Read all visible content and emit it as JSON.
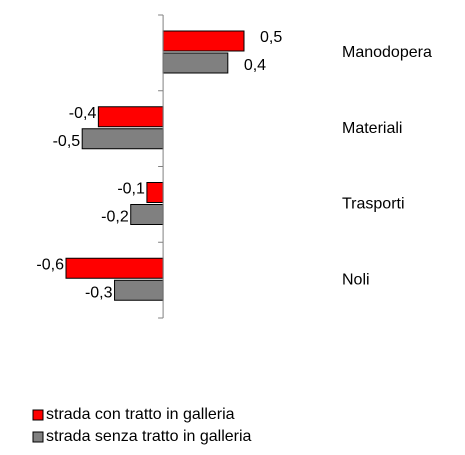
{
  "chart_data": {
    "type": "bar",
    "orientation": "horizontal",
    "categories": [
      "Manodopera",
      "Materiali",
      "Trasporti",
      "Noli"
    ],
    "series": [
      {
        "name": "strada con tratto in galleria",
        "color": "#ff0000",
        "values": [
          0.5,
          -0.4,
          -0.1,
          -0.6
        ],
        "value_labels": [
          "0,5",
          "-0,4",
          "-0,1",
          "-0,6"
        ]
      },
      {
        "name": "strada senza tratto in galleria",
        "color": "#808080",
        "values": [
          0.4,
          -0.5,
          -0.2,
          -0.3
        ],
        "value_labels": [
          "0,4",
          "-0,5",
          "-0,2",
          "-0,3"
        ]
      }
    ],
    "xlim": [
      -0.6,
      0.5
    ]
  }
}
